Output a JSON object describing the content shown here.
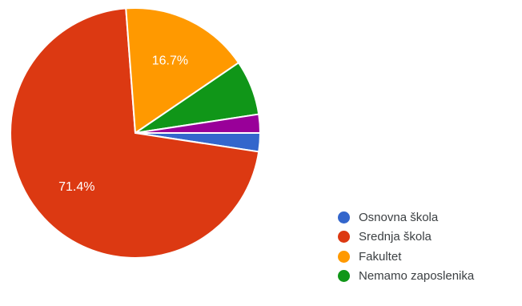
{
  "chart_data": {
    "type": "pie",
    "title": "",
    "slices": [
      {
        "label": "Osnovna škola",
        "value": 2.4,
        "color": "#3366cc",
        "data_label": ""
      },
      {
        "label": "Srednja škola",
        "value": 71.4,
        "color": "#dc3912",
        "data_label": "71.4%"
      },
      {
        "label": "Fakultet",
        "value": 16.7,
        "color": "#ff9900",
        "data_label": "16.7%"
      },
      {
        "label": "Nemamo zaposlenika",
        "value": 7.1,
        "color": "#109618",
        "data_label": ""
      },
      {
        "label": "",
        "value": 2.4,
        "color": "#990099",
        "data_label": ""
      }
    ],
    "legend_position": "bottom-right",
    "start_angle_deg": 0,
    "direction": "clockwise"
  }
}
